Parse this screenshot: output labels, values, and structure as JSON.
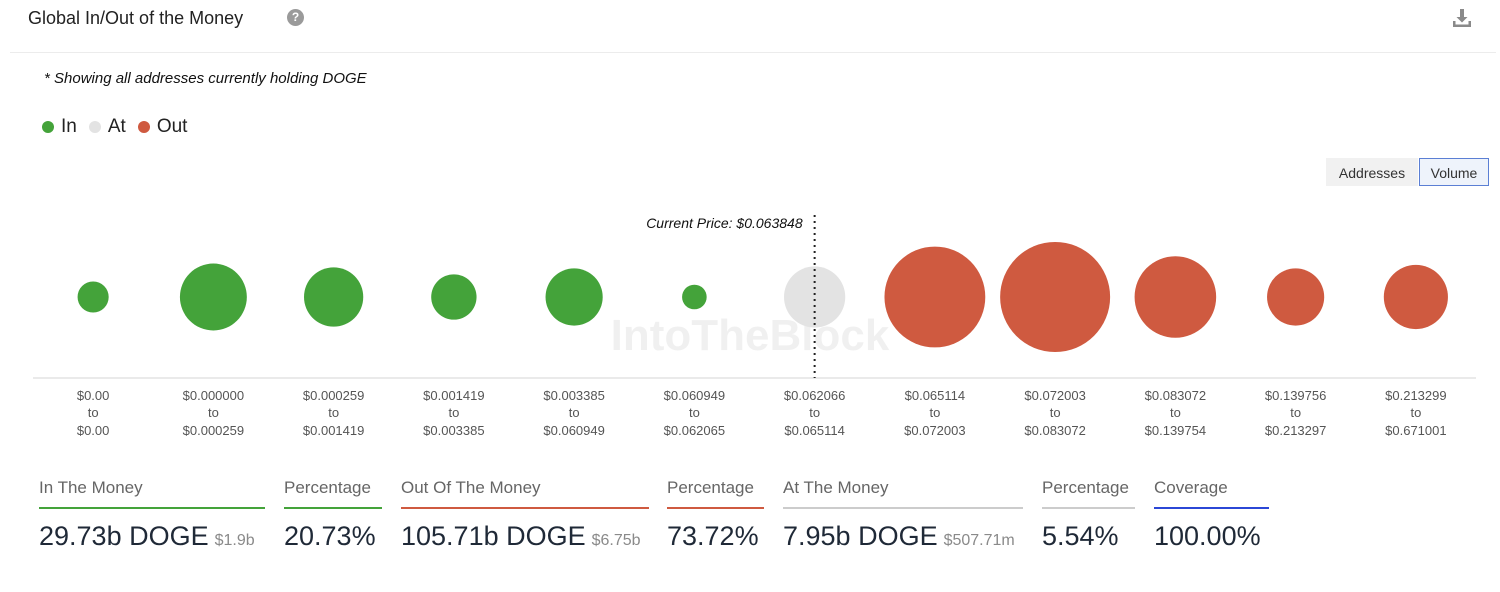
{
  "header": {
    "title": "Global In/Out of the Money",
    "help_icon": "question-circle-icon",
    "help_glyph": "?",
    "download_icon": "download-icon"
  },
  "note": "* Showing all addresses currently holding DOGE",
  "legend": [
    {
      "label": "In",
      "color": "#44a33a"
    },
    {
      "label": "At",
      "color": "#e3e3e3"
    },
    {
      "label": "Out",
      "color": "#cf5a40"
    }
  ],
  "toggle": {
    "options": [
      "Addresses",
      "Volume"
    ],
    "selected": "Volume"
  },
  "chart_data": {
    "type": "scatter",
    "subtype": "bubble",
    "current_price_label": "Current Price: $0.063848",
    "current_price_bucket_index": 6,
    "watermark": "IntoTheBlock",
    "grid": false,
    "bubble_size_metric": "Volume",
    "buckets": [
      {
        "from": "$0.00",
        "to": "$0.00",
        "status": "In",
        "relative_volume": 0.08
      },
      {
        "from": "$0.000000",
        "to": "$0.000259",
        "status": "In",
        "relative_volume": 0.37
      },
      {
        "from": "$0.000259",
        "to": "$0.001419",
        "status": "In",
        "relative_volume": 0.29
      },
      {
        "from": "$0.001419",
        "to": "$0.003385",
        "status": "In",
        "relative_volume": 0.17
      },
      {
        "from": "$0.003385",
        "to": "$0.060949",
        "status": "In",
        "relative_volume": 0.27
      },
      {
        "from": "$0.060949",
        "to": "$0.062065",
        "status": "In",
        "relative_volume": 0.05
      },
      {
        "from": "$0.062066",
        "to": "$0.065114",
        "status": "At",
        "relative_volume": 0.31
      },
      {
        "from": "$0.065114",
        "to": "$0.072003",
        "status": "Out",
        "relative_volume": 0.84
      },
      {
        "from": "$0.072003",
        "to": "$0.083072",
        "status": "Out",
        "relative_volume": 1.0
      },
      {
        "from": "$0.083072",
        "to": "$0.139754",
        "status": "Out",
        "relative_volume": 0.55
      },
      {
        "from": "$0.139756",
        "to": "$0.213297",
        "status": "Out",
        "relative_volume": 0.27
      },
      {
        "from": "$0.213299",
        "to": "$0.671001",
        "status": "Out",
        "relative_volume": 0.34
      }
    ],
    "to_label": "to"
  },
  "summary": {
    "in_label": "In The Money",
    "in_value": "29.73b DOGE",
    "in_usd": "$1.9b",
    "in_pct_label": "Percentage",
    "in_pct": "20.73%",
    "out_label": "Out Of The Money",
    "out_value": "105.71b DOGE",
    "out_usd": "$6.75b",
    "out_pct_label": "Percentage",
    "out_pct": "73.72%",
    "at_label": "At The Money",
    "at_value": "7.95b DOGE",
    "at_usd": "$507.71m",
    "at_pct_label": "Percentage",
    "at_pct": "5.54%",
    "coverage_label": "Coverage",
    "coverage": "100.00%",
    "colors": {
      "in": "#44a33a",
      "out": "#cf5a40",
      "at": "#cccccc",
      "coverage": "#2b47d6"
    }
  }
}
